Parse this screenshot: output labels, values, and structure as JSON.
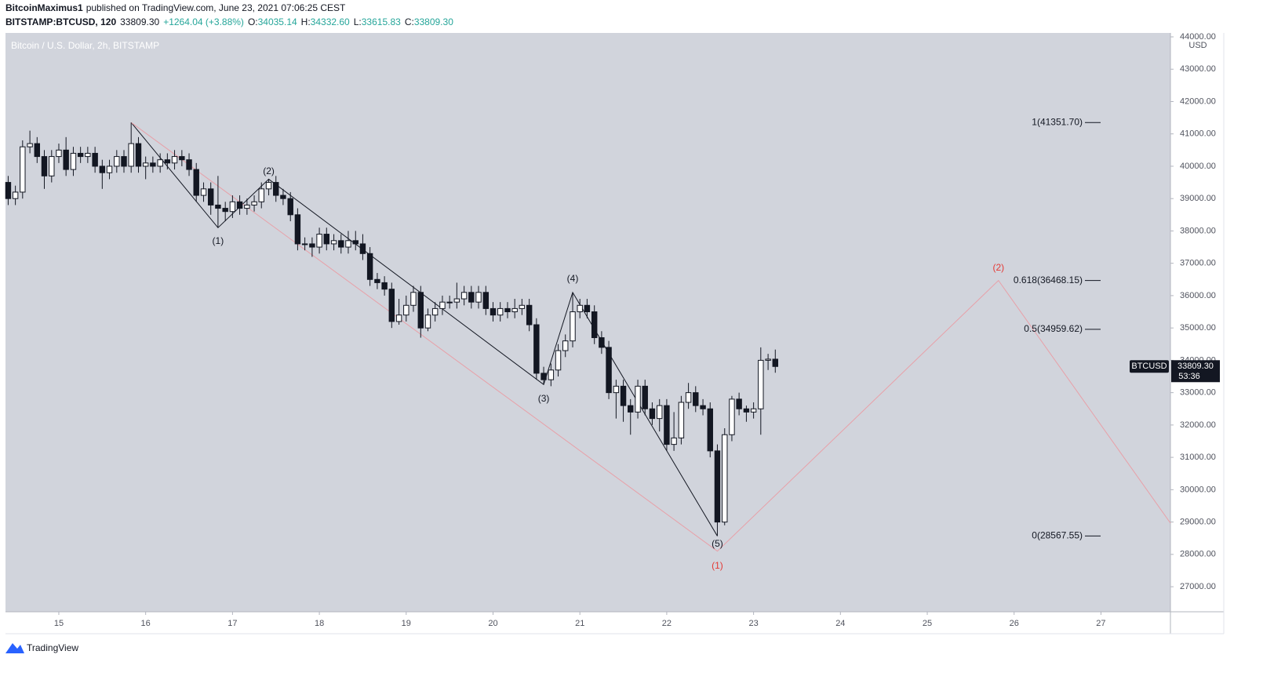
{
  "header": {
    "author": "BitcoinMaximus1",
    "published": "published on TradingView.com, June 23, 2021 07:06:25 CEST",
    "symbol": "BITSTAMP:BTCUSD, 120",
    "last": "33809.30",
    "change": "+1264.04 (+3.88%)",
    "ohlc": [
      {
        "label": "O:",
        "value": "34035.14"
      },
      {
        "label": "H:",
        "value": "34332.60"
      },
      {
        "label": "L:",
        "value": "33615.83"
      },
      {
        "label": "C:",
        "value": "33809.30"
      }
    ]
  },
  "logo": "TradingView",
  "chart_data": {
    "type": "candlestick",
    "subtitle": "Bitcoin / U.S. Dollar, 2h, BITSTAMP",
    "y_unit": "USD",
    "up_color": "#ffffff",
    "down_color": "#131722",
    "background": "#d1d4dc",
    "xlim": [
      14.386,
      27.8
    ],
    "ylim": [
      26226,
      44121
    ],
    "xticks": [
      15,
      16,
      17,
      18,
      19,
      20,
      21,
      22,
      23,
      24,
      25,
      26,
      27
    ],
    "yticks": [
      {
        "value": 27000,
        "label": "27000.00"
      },
      {
        "value": 28000,
        "label": "28000.00"
      },
      {
        "value": 29000,
        "label": "29000.00"
      },
      {
        "value": 30000,
        "label": "30000.00"
      },
      {
        "value": 31000,
        "label": "31000.00"
      },
      {
        "value": 32000,
        "label": "32000.00"
      },
      {
        "value": 33000,
        "label": "33000.00"
      },
      {
        "value": 34000,
        "label": "34000.00"
      },
      {
        "value": 35000,
        "label": "35000.00"
      },
      {
        "value": 36000,
        "label": "36000.00"
      },
      {
        "value": 37000,
        "label": "37000.00"
      },
      {
        "value": 38000,
        "label": "38000.00"
      },
      {
        "value": 39000,
        "label": "39000.00"
      },
      {
        "value": 40000,
        "label": "40000.00"
      },
      {
        "value": 41000,
        "label": "41000.00"
      },
      {
        "value": 42000,
        "label": "42000.00"
      },
      {
        "value": 43000,
        "label": "43000.00"
      },
      {
        "value": 44000,
        "label": "44000.00"
      }
    ],
    "x": [
      14.417,
      14.5,
      14.583,
      14.667,
      14.75,
      14.833,
      14.917,
      15,
      15.083,
      15.167,
      15.25,
      15.333,
      15.417,
      15.5,
      15.583,
      15.667,
      15.75,
      15.833,
      15.917,
      16,
      16.083,
      16.167,
      16.25,
      16.333,
      16.417,
      16.5,
      16.583,
      16.667,
      16.75,
      16.833,
      16.917,
      17,
      17.083,
      17.167,
      17.25,
      17.333,
      17.417,
      17.5,
      17.583,
      17.667,
      17.75,
      17.833,
      17.917,
      18,
      18.083,
      18.167,
      18.25,
      18.333,
      18.417,
      18.5,
      18.583,
      18.667,
      18.75,
      18.833,
      18.917,
      19,
      19.083,
      19.167,
      19.25,
      19.333,
      19.417,
      19.5,
      19.583,
      19.667,
      19.75,
      19.833,
      19.917,
      20,
      20.083,
      20.167,
      20.25,
      20.333,
      20.417,
      20.5,
      20.583,
      20.667,
      20.75,
      20.833,
      20.917,
      21,
      21.083,
      21.167,
      21.25,
      21.333,
      21.417,
      21.5,
      21.583,
      21.667,
      21.75,
      21.833,
      21.917,
      22,
      22.083,
      22.167,
      22.25,
      22.333,
      22.417,
      22.5,
      22.583,
      22.667,
      22.75,
      22.833,
      22.917,
      23,
      23.083,
      23.167,
      23.25
    ],
    "open": [
      39500,
      39000,
      39200,
      40600,
      40700,
      40300,
      39700,
      40300,
      40500,
      39900,
      40400,
      40300,
      40400,
      40000,
      39800,
      40000,
      40300,
      40000,
      40700,
      40000,
      40100,
      40000,
      40200,
      40100,
      40300,
      40200,
      39900,
      39100,
      39300,
      38800,
      38700,
      38600,
      38900,
      38700,
      38800,
      38900,
      39300,
      39500,
      39100,
      39000,
      38500,
      37600,
      37600,
      37500,
      37900,
      37600,
      37700,
      37500,
      37700,
      37600,
      37300,
      36500,
      36400,
      36200,
      35200,
      35400,
      35700,
      36100,
      35000,
      35400,
      35600,
      35800,
      35800,
      35900,
      36100,
      35800,
      36100,
      35600,
      35400,
      35600,
      35500,
      35600,
      35700,
      35100,
      33600,
      33400,
      33700,
      34300,
      34600,
      35500,
      35700,
      35500,
      34700,
      34400,
      33000,
      33200,
      32600,
      32400,
      33200,
      32500,
      32200,
      32600,
      31400,
      31600,
      32700,
      33000,
      32600,
      32500,
      31200,
      29000,
      31700,
      32800,
      32500,
      32400,
      32500,
      34000,
      34035.14
    ],
    "high": [
      39700,
      39400,
      40800,
      41100,
      40900,
      40500,
      40500,
      40700,
      40900,
      40600,
      40600,
      40600,
      40600,
      40200,
      40200,
      40500,
      40500,
      41351.7,
      40900,
      40300,
      40300,
      40400,
      40400,
      40500,
      40500,
      40400,
      40100,
      39500,
      39500,
      39700,
      38900,
      39100,
      39100,
      39000,
      39100,
      39500,
      39600,
      39700,
      39300,
      39200,
      38700,
      37800,
      37800,
      38100,
      38100,
      37900,
      37900,
      38000,
      38000,
      37900,
      37500,
      36700,
      36600,
      36400,
      35900,
      36000,
      36300,
      36300,
      35600,
      35800,
      36000,
      36000,
      36400,
      36300,
      36300,
      36300,
      36300,
      35800,
      35800,
      35800,
      35900,
      35900,
      35900,
      35300,
      33800,
      33900,
      34500,
      34800,
      36100,
      35900,
      35900,
      35700,
      34900,
      34600,
      33400,
      33400,
      32800,
      33400,
      33400,
      32700,
      32800,
      32800,
      32400,
      32900,
      33300,
      33200,
      32800,
      32700,
      31400,
      31900,
      32900,
      33000,
      32600,
      32700,
      34400,
      34200,
      34332.6
    ],
    "low": [
      38800,
      38800,
      39000,
      40400,
      40100,
      39300,
      39500,
      40100,
      39700,
      39700,
      40100,
      40100,
      39800,
      39300,
      39600,
      39800,
      39800,
      39800,
      39800,
      39600,
      39800,
      39800,
      39900,
      39900,
      40000,
      39700,
      38900,
      38900,
      38500,
      38100,
      38300,
      38400,
      38500,
      38500,
      38600,
      38700,
      39100,
      38900,
      38800,
      38300,
      37400,
      37400,
      37200,
      37300,
      37400,
      37400,
      37300,
      37300,
      37400,
      37100,
      36300,
      36200,
      36000,
      35000,
      35100,
      35200,
      35500,
      34700,
      34900,
      35200,
      35400,
      35600,
      35600,
      35700,
      35600,
      35600,
      35400,
      35200,
      35200,
      35300,
      35300,
      35400,
      34900,
      33400,
      33250,
      33200,
      33500,
      34100,
      34400,
      35300,
      35300,
      34500,
      34200,
      32800,
      32200,
      32100,
      31700,
      32200,
      32300,
      32000,
      31800,
      31200,
      31200,
      31400,
      32500,
      32400,
      32300,
      31000,
      28567.55,
      28900,
      31500,
      32300,
      32100,
      32200,
      31700,
      33700,
      33615.83
    ],
    "close": [
      39000,
      39200,
      40600,
      40700,
      40300,
      39700,
      40300,
      40500,
      39900,
      40400,
      40300,
      40400,
      40000,
      39800,
      40000,
      40300,
      40000,
      40700,
      40000,
      40100,
      40000,
      40200,
      40100,
      40300,
      40200,
      39900,
      39100,
      39300,
      38800,
      38700,
      38600,
      38900,
      38700,
      38800,
      38900,
      39300,
      39500,
      39100,
      39000,
      38500,
      37600,
      37600,
      37500,
      37900,
      37600,
      37700,
      37500,
      37700,
      37600,
      37300,
      36500,
      36400,
      36200,
      35200,
      35400,
      35700,
      36100,
      35000,
      35400,
      35600,
      35800,
      35800,
      35900,
      36100,
      35800,
      36100,
      35600,
      35400,
      35600,
      35500,
      35600,
      35700,
      35100,
      33600,
      33400,
      33700,
      34300,
      34600,
      35500,
      35700,
      35500,
      34700,
      34400,
      33000,
      33200,
      32600,
      32400,
      33200,
      32500,
      32200,
      32600,
      31400,
      31600,
      32700,
      33000,
      32600,
      32500,
      31200,
      29000,
      31700,
      32800,
      32500,
      32400,
      32500,
      34000,
      34035.14,
      33809.3
    ],
    "last_price": {
      "name": "BTCUSD",
      "value": 33809.3,
      "label": "33809.30",
      "countdown": "53:36"
    },
    "fib_levels": [
      {
        "value": 41351.7,
        "label": "1(41351.70)"
      },
      {
        "value": 36468.15,
        "label": "0.618(36468.15)"
      },
      {
        "value": 34959.62,
        "label": "0.5(34959.62)"
      },
      {
        "value": 28567.55,
        "label": "0(28567.55)"
      }
    ],
    "wave_lines": [
      {
        "color": "#131722",
        "x": [
          15.833,
          16.833,
          17.417,
          20.583,
          20.917,
          22.583
        ],
        "y": [
          41351.7,
          38100,
          39600,
          33250,
          36100,
          28567.55
        ]
      },
      {
        "color": "#e8a0a8",
        "x": [
          15.833,
          22.583,
          25.82,
          27.8
        ],
        "y": [
          41351.7,
          28100,
          36468.15,
          28966
        ]
      }
    ],
    "wave_labels": [
      {
        "text": "(1)",
        "x": 16.833,
        "y": 37671,
        "color": "#131722"
      },
      {
        "text": "(2)",
        "x": 17.417,
        "y": 39830,
        "color": "#131722"
      },
      {
        "text": "(3)",
        "x": 20.583,
        "y": 32800,
        "color": "#131722"
      },
      {
        "text": "(4)",
        "x": 20.917,
        "y": 36507,
        "color": "#131722"
      },
      {
        "text": "(5)",
        "x": 22.583,
        "y": 28311,
        "color": "#131722"
      },
      {
        "text": "(1)",
        "x": 22.583,
        "y": 27633,
        "color": "#e53935"
      },
      {
        "text": "(2)",
        "x": 25.82,
        "y": 36847,
        "color": "#e53935"
      }
    ]
  }
}
